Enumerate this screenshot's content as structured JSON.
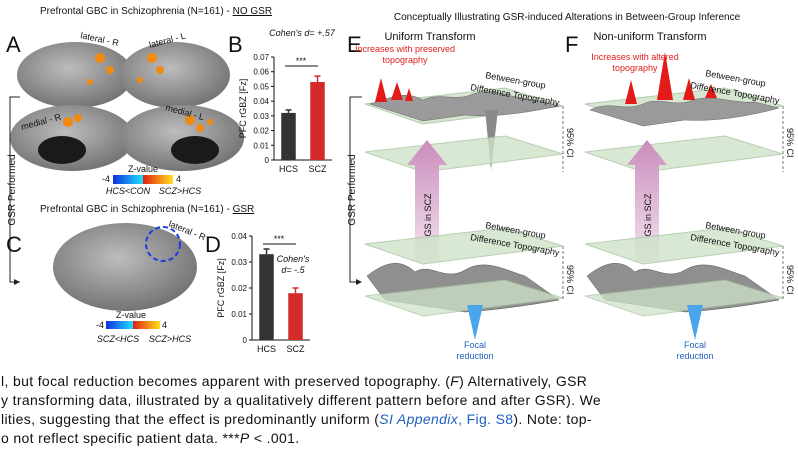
{
  "panel_a": {
    "label": "A",
    "title_parts": [
      "Prefrontal GBC in Schizophrenia (N=161) - ",
      "NO GSR"
    ],
    "views": [
      "lateral - R",
      "lateral - L",
      "medial - R",
      "medial - L"
    ],
    "colorbar": {
      "title": "Z-value",
      "min": -4,
      "max": 4,
      "neg_label": "HCS<CON",
      "pos_label": "SCZ>HCS"
    }
  },
  "panel_b": {
    "label": "B",
    "annotation": "Cohen's d= +.57",
    "significance": "***",
    "chart": {
      "type": "bar",
      "y_label": "PFC rGBZ [Fz]",
      "categories": [
        "HCS",
        "SCZ"
      ],
      "values": [
        0.032,
        0.053
      ],
      "errors": [
        0.002,
        0.004
      ],
      "colors": [
        "#333333",
        "#d42a2a"
      ],
      "ylim": [
        0,
        0.07
      ],
      "yticks": [
        0,
        0.01,
        0.02,
        0.03,
        0.04,
        0.05,
        0.06,
        0.07
      ]
    }
  },
  "side_label": "GSR Performed",
  "panel_c": {
    "label": "C",
    "title_parts": [
      "Prefrontal GBC in Schizophrenia (N=161) - ",
      "GSR"
    ],
    "view": "lateral - R",
    "colorbar": {
      "title": "Z-value",
      "min": -4,
      "max": 4,
      "neg_label": "SCZ<HCS",
      "pos_label": "SCZ>HCS"
    }
  },
  "panel_d": {
    "label": "D",
    "annotation_lines": [
      "Cohen's",
      "d= -.5"
    ],
    "significance": "***",
    "chart": {
      "type": "bar",
      "y_label": "PFC rGBZ [Fz]",
      "categories": [
        "HCS",
        "SCZ"
      ],
      "values": [
        0.033,
        0.018
      ],
      "errors": [
        0.002,
        0.002
      ],
      "colors": [
        "#333333",
        "#d42a2a"
      ],
      "ylim": [
        0,
        0.04
      ],
      "yticks": [
        0,
        0.01,
        0.02,
        0.03,
        0.04
      ]
    }
  },
  "right_title": "Conceptually Illustrating GSR-induced Alterations in Between-Group Inference",
  "panel_e": {
    "label": "E",
    "title": "Uniform Transform",
    "peak_note_lines": [
      "Increases with preserved",
      "topography"
    ],
    "upper_surface_lines": [
      "Between-group",
      "Difference Topography"
    ],
    "upper_ci": "95% CI",
    "arrow_label": "GS in SCZ",
    "lower_surface_lines": [
      "Between-group",
      "Difference Topography"
    ],
    "lower_ci": "95% CI",
    "reduction_lines": [
      "Focal",
      "reduction"
    ],
    "side_label": "GSR Performed"
  },
  "panel_f": {
    "label": "F",
    "title": "Non-uniform Transform",
    "peak_note_lines": [
      "Increases with altered",
      "topography"
    ],
    "upper_surface_lines": [
      "Between-group",
      "Difference Topography"
    ],
    "upper_ci": "95% CI",
    "arrow_label": "GS in SCZ",
    "lower_surface_lines": [
      "Between-group",
      "Difference Topography"
    ],
    "lower_ci": "95% CI",
    "reduction_lines": [
      "Focal",
      "reduction"
    ]
  },
  "caption": {
    "lines": [
      [
        "l, but focal reduction becomes apparent with preserved topography. (",
        "F",
        ") Alternatively, GSR"
      ],
      [
        "y transforming data, illustrated by a qualitatively different pattern before and after GSR). We"
      ],
      [
        "lities, suggesting that the effect is predominantly uniform (",
        "SI Appendix",
        ", Fig. S8",
        "). Note: top-"
      ],
      [
        "o not reflect specific patient data. ***",
        "P",
        " < .001."
      ]
    ]
  }
}
